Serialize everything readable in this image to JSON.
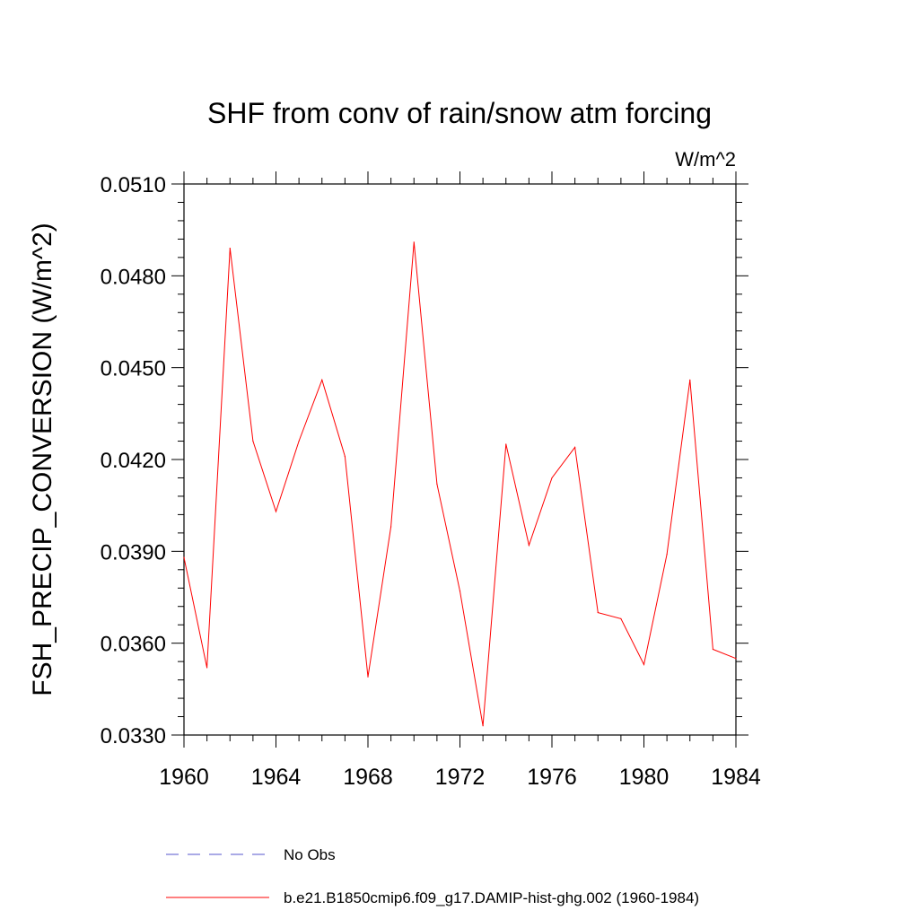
{
  "chart_data": {
    "type": "line",
    "title": "SHF from conv of rain/snow atm forcing",
    "units_label": "W/m^2",
    "ylabel": "FSH_PRECIP_CONVERSION  (W/m^2)",
    "xlabel": "",
    "xlim": [
      1960,
      1984
    ],
    "ylim": [
      0.033,
      0.051
    ],
    "x_ticks": [
      1960,
      1964,
      1968,
      1972,
      1976,
      1980,
      1984
    ],
    "x_tick_labels": [
      "1960",
      "1964",
      "1968",
      "1972",
      "1976",
      "1980",
      "1984"
    ],
    "y_ticks": [
      0.033,
      0.036,
      0.039,
      0.042,
      0.045,
      0.048,
      0.051
    ],
    "y_tick_labels": [
      "0.0330",
      "0.0360",
      "0.0390",
      "0.0420",
      "0.0450",
      "0.0480",
      "0.0510"
    ],
    "grid": false,
    "legend_position": "bottom",
    "series": [
      {
        "name": "b.e21.B1850cmip6.f09_g17.DAMIP-hist-ghg.002 (1960-1984)",
        "color": "#ff0000",
        "style": "solid",
        "x": [
          1960,
          1961,
          1962,
          1963,
          1964,
          1965,
          1966,
          1967,
          1968,
          1969,
          1970,
          1971,
          1972,
          1973,
          1974,
          1975,
          1976,
          1977,
          1978,
          1979,
          1980,
          1981,
          1982,
          1983,
          1984
        ],
        "values": [
          0.0388,
          0.0352,
          0.0489,
          0.0426,
          0.0403,
          0.0426,
          0.0446,
          0.0421,
          0.0349,
          0.0398,
          0.0491,
          0.0412,
          0.0377,
          0.0333,
          0.0425,
          0.0392,
          0.0414,
          0.0424,
          0.037,
          0.0368,
          0.0353,
          0.0389,
          0.0446,
          0.0358,
          0.0355
        ]
      }
    ],
    "legend": [
      {
        "label": "No Obs",
        "color": "#5555cc",
        "style": "dashed"
      },
      {
        "label": "b.e21.B1850cmip6.f09_g17.DAMIP-hist-ghg.002 (1960-1984)",
        "color": "#ff0000",
        "style": "solid"
      }
    ]
  }
}
